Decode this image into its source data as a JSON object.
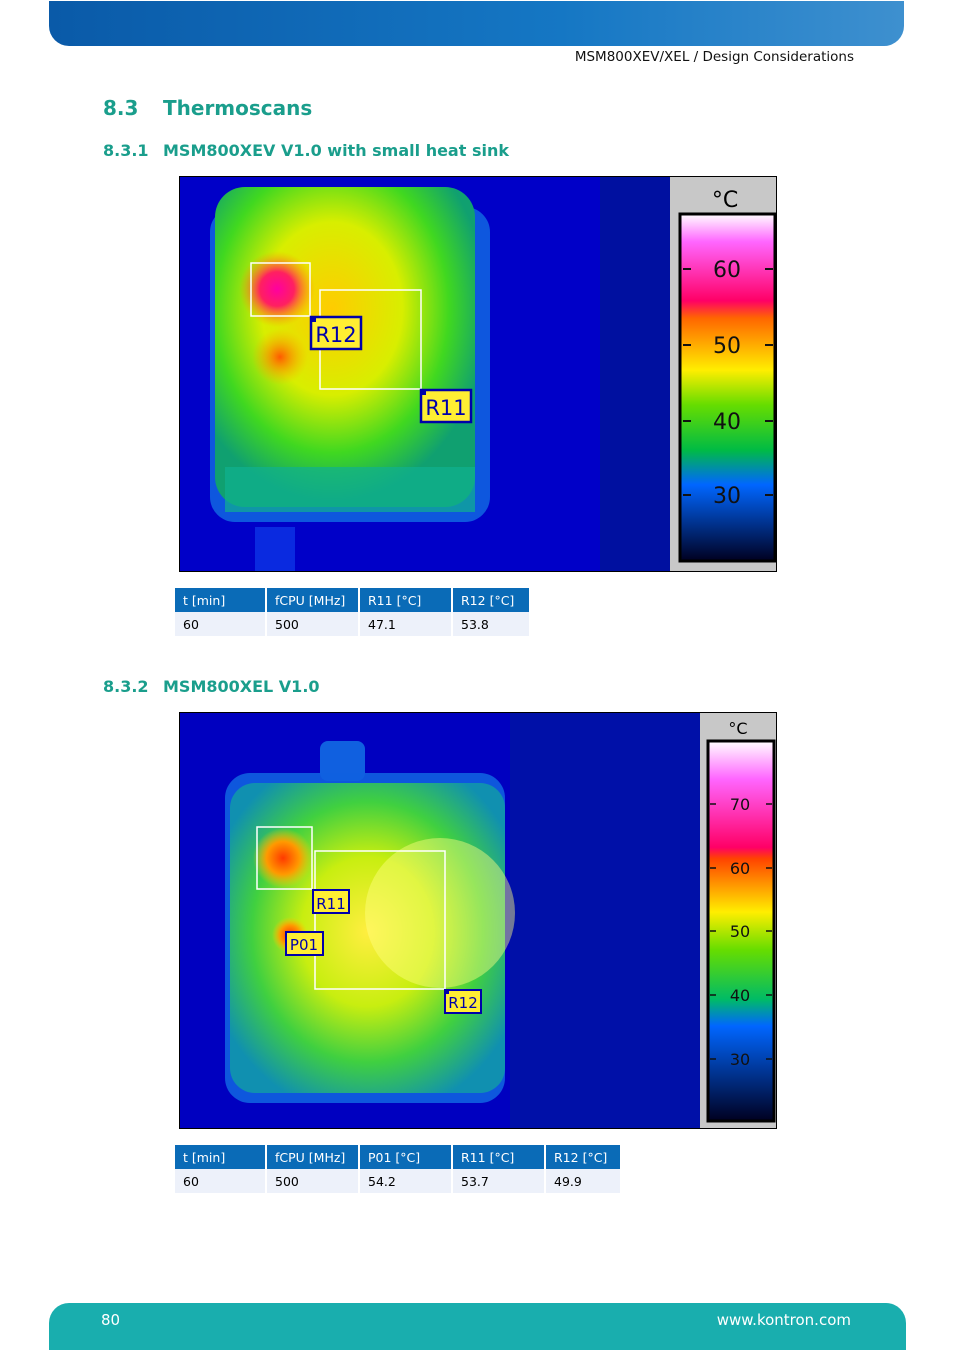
{
  "header": {
    "running_title": "MSM800XEV/XEL / Design Considerations"
  },
  "section": {
    "number": "8.3",
    "title": "Thermoscans"
  },
  "subsections": [
    {
      "number": "8.3.1",
      "title": "MSM800XEV V1.0 with small heat sink",
      "image": {
        "unit": "°C",
        "scale_ticks": [
          "60",
          "50",
          "40",
          "30"
        ],
        "region_labels": [
          "R12",
          "R11"
        ]
      },
      "table": {
        "headers": [
          "t [min]",
          "fCPU [MHz]",
          "R11 [°C]",
          "R12 [°C]"
        ],
        "row": [
          "60",
          "500",
          "47.1",
          "53.8"
        ]
      }
    },
    {
      "number": "8.3.2",
      "title": "MSM800XEL V1.0",
      "image": {
        "unit": "°C",
        "scale_ticks": [
          "70",
          "60",
          "50",
          "40",
          "30"
        ],
        "region_labels": [
          "R11",
          "P01",
          "R12"
        ]
      },
      "table": {
        "headers": [
          "t [min]",
          "fCPU [MHz]",
          "P01 [°C]",
          "R11 [°C]",
          "R12 [°C]"
        ],
        "row": [
          "60",
          "500",
          "54.2",
          "53.7",
          "49.9"
        ]
      }
    }
  ],
  "footer": {
    "page_number": "80",
    "website": "www.kontron.com"
  },
  "colors": {
    "heading": "#1a9e8c",
    "table_header": "#0a6bb7",
    "table_body": "#edf1fa",
    "top_bar": "#1577c4",
    "footer_bar": "#19aeae"
  }
}
